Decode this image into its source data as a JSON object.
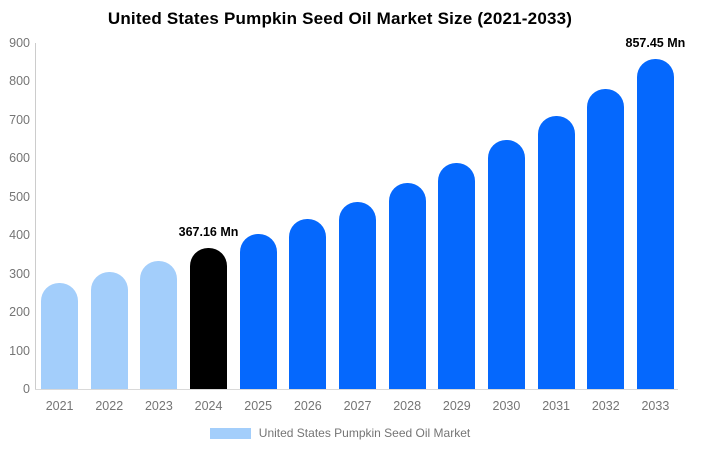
{
  "title": "United States Pumpkin Seed Oil Market Size (2021-2033)",
  "colors": {
    "light_blue": "#A3CEFB",
    "bright_blue": "#0568FD",
    "black": "#000000",
    "axis_text": "#757575",
    "axis_line": "#cccccc"
  },
  "chart_data": {
    "type": "bar",
    "title": "United States Pumpkin Seed Oil Market Size (2021-2033)",
    "categories": [
      "2021",
      "2022",
      "2023",
      "2024",
      "2025",
      "2026",
      "2027",
      "2028",
      "2029",
      "2030",
      "2031",
      "2032",
      "2033"
    ],
    "values": [
      277,
      304,
      334,
      367.16,
      404,
      443,
      487,
      535,
      588,
      647,
      711,
      781,
      857.45
    ],
    "unit": "Mn",
    "bar_colors": [
      "#A3CEFB",
      "#A3CEFB",
      "#A3CEFB",
      "#000000",
      "#0568FD",
      "#0568FD",
      "#0568FD",
      "#0568FD",
      "#0568FD",
      "#0568FD",
      "#0568FD",
      "#0568FD",
      "#0568FD"
    ],
    "annotations": [
      {
        "index": 3,
        "text": "367.16 Mn"
      },
      {
        "index": 12,
        "text": "857.45 Mn"
      }
    ],
    "xlabel": "",
    "ylabel": "",
    "ylim": [
      0,
      900
    ],
    "yticks": [
      0,
      100,
      200,
      300,
      400,
      500,
      600,
      700,
      800,
      900
    ],
    "grid": false,
    "legend_position": "bottom",
    "legend": {
      "label": "United States Pumpkin Seed Oil Market",
      "swatch_color": "#A3CEFB"
    }
  }
}
